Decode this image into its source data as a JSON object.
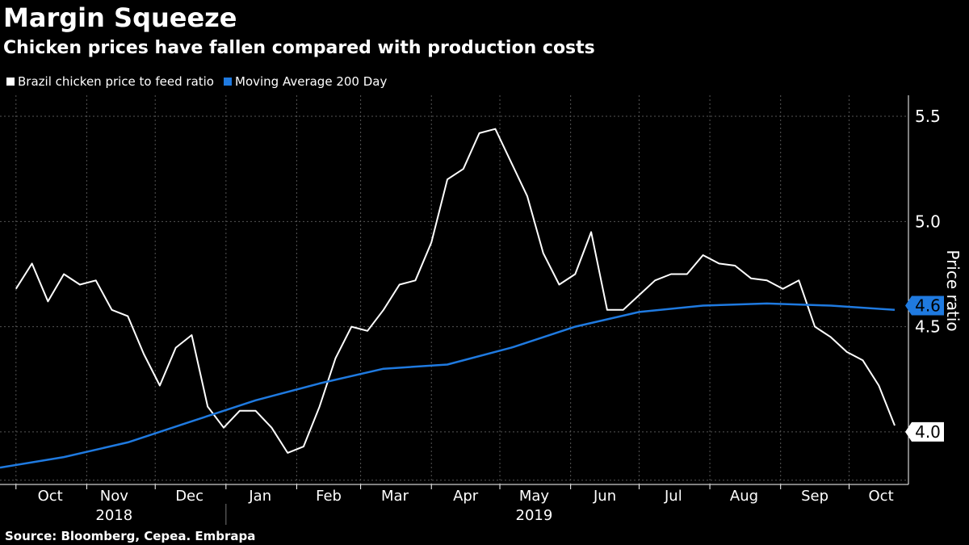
{
  "chart_data": {
    "type": "line",
    "title": "Margin Squeeze",
    "subtitle": "Chicken prices have fallen compared with production costs",
    "ylabel": "Price ratio",
    "source": "Source: Bloomberg, Cepea. Embrapa",
    "ylim": [
      3.75,
      5.6
    ],
    "y_ticks": [
      "4.0",
      "4.5",
      "5.0",
      "5.5"
    ],
    "x_month_labels": [
      "Oct",
      "Nov",
      "Dec",
      "Jan",
      "Feb",
      "Mar",
      "Apr",
      "May",
      "Jun",
      "Jul",
      "Aug",
      "Sep",
      "Oct"
    ],
    "x_year_labels": [
      "2018",
      "2019"
    ],
    "last_values": [
      "4.6",
      "4.0"
    ],
    "legend_position": "top-left",
    "grid": true,
    "series": [
      {
        "name": "Brazil chicken price to feed ratio",
        "color": "#ffffff",
        "x": [
          "2018-10-01",
          "2018-10-08",
          "2018-10-15",
          "2018-10-22",
          "2018-10-29",
          "2018-11-05",
          "2018-11-12",
          "2018-11-19",
          "2018-11-26",
          "2018-12-03",
          "2018-12-10",
          "2018-12-17",
          "2018-12-24",
          "2018-12-31",
          "2019-01-07",
          "2019-01-14",
          "2019-01-21",
          "2019-01-28",
          "2019-02-04",
          "2019-02-11",
          "2019-02-18",
          "2019-02-25",
          "2019-03-04",
          "2019-03-11",
          "2019-03-18",
          "2019-03-25",
          "2019-04-01",
          "2019-04-08",
          "2019-04-15",
          "2019-04-22",
          "2019-04-29",
          "2019-05-06",
          "2019-05-13",
          "2019-05-20",
          "2019-05-27",
          "2019-06-03",
          "2019-06-10",
          "2019-06-17",
          "2019-06-24",
          "2019-07-01",
          "2019-07-08",
          "2019-07-15",
          "2019-07-22",
          "2019-07-29",
          "2019-08-05",
          "2019-08-12",
          "2019-08-19",
          "2019-08-26",
          "2019-09-02",
          "2019-09-09",
          "2019-09-16",
          "2019-09-23",
          "2019-09-30",
          "2019-10-07",
          "2019-10-14",
          "2019-10-21"
        ],
        "values": [
          4.68,
          4.8,
          4.62,
          4.75,
          4.7,
          4.72,
          4.58,
          4.55,
          4.37,
          4.22,
          4.4,
          4.46,
          4.12,
          4.02,
          4.1,
          4.1,
          4.02,
          3.9,
          3.93,
          4.12,
          4.35,
          4.5,
          4.48,
          4.58,
          4.7,
          4.72,
          4.9,
          5.2,
          5.25,
          5.42,
          5.44,
          5.28,
          5.12,
          4.85,
          4.7,
          4.75,
          4.95,
          4.58,
          4.58,
          4.65,
          4.72,
          4.75,
          4.75,
          4.84,
          4.8,
          4.79,
          4.73,
          4.72,
          4.68,
          4.72,
          4.5,
          4.45,
          4.38,
          4.34,
          4.22,
          4.03
        ]
      },
      {
        "name": "Moving Average 200 Day",
        "color": "#1f7ae0",
        "x": [
          "2018-09-24",
          "2018-10-22",
          "2018-11-19",
          "2018-12-17",
          "2019-01-14",
          "2019-02-11",
          "2019-03-11",
          "2019-04-08",
          "2019-05-06",
          "2019-06-03",
          "2019-07-01",
          "2019-07-29",
          "2019-08-26",
          "2019-09-23",
          "2019-10-21"
        ],
        "values": [
          3.83,
          3.88,
          3.95,
          4.05,
          4.15,
          4.23,
          4.3,
          4.32,
          4.4,
          4.5,
          4.57,
          4.6,
          4.61,
          4.6,
          4.58
        ]
      }
    ]
  }
}
